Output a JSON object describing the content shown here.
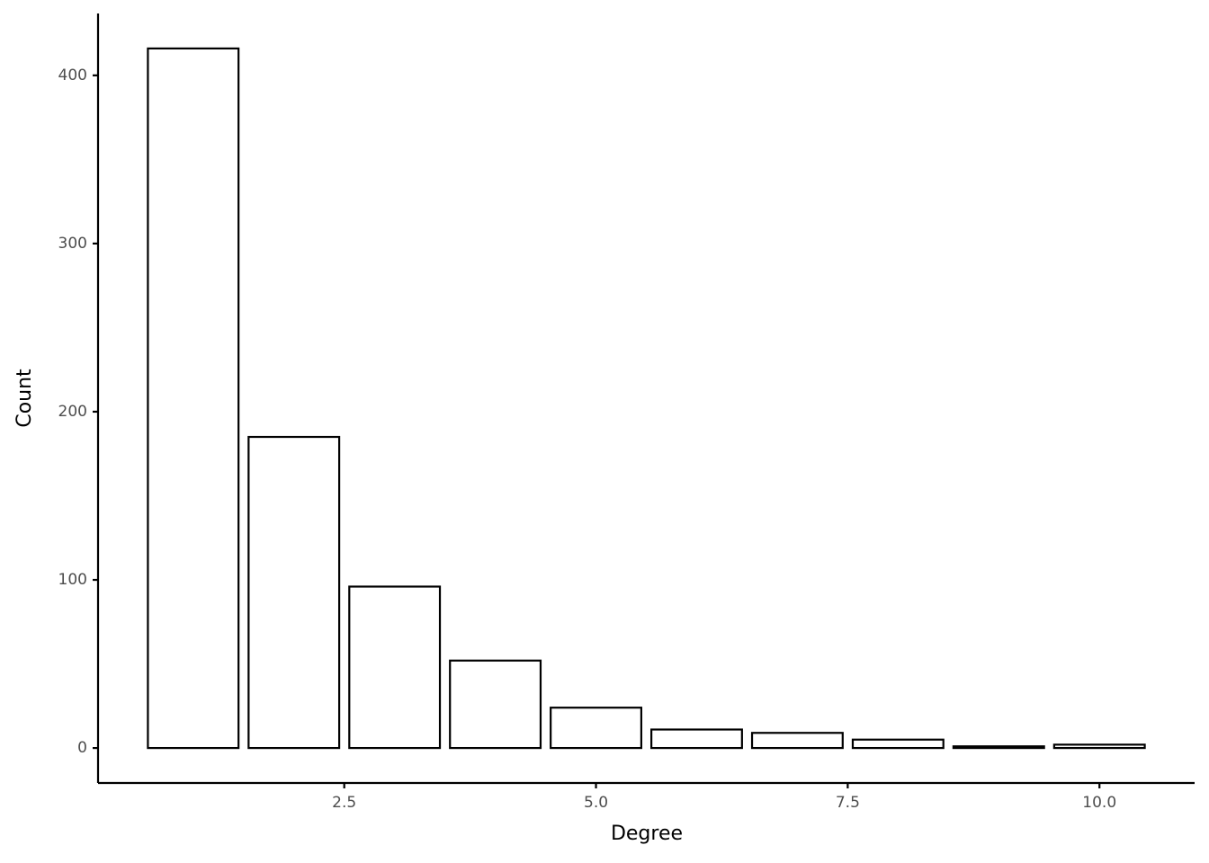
{
  "chart_data": {
    "type": "bar",
    "xlabel": "Degree",
    "ylabel": "Count",
    "x": [
      1,
      2,
      3,
      4,
      5,
      6,
      7,
      8,
      9,
      10
    ],
    "values": [
      416,
      185,
      96,
      52,
      24,
      11,
      9,
      5,
      1,
      2
    ],
    "color": "#ffffff",
    "edgecolor": "#000000",
    "xlim": [
      0.055,
      10.945
    ],
    "xticks": [
      2.5,
      {
        "value": 5,
        "label": "5.0"
      },
      7.5,
      {
        "value": 10,
        "label": "10.0"
      }
    ],
    "ylim": [
      -20.8,
      436.8
    ],
    "yticks": [
      0,
      100,
      200,
      300,
      400
    ],
    "grid": false
  }
}
